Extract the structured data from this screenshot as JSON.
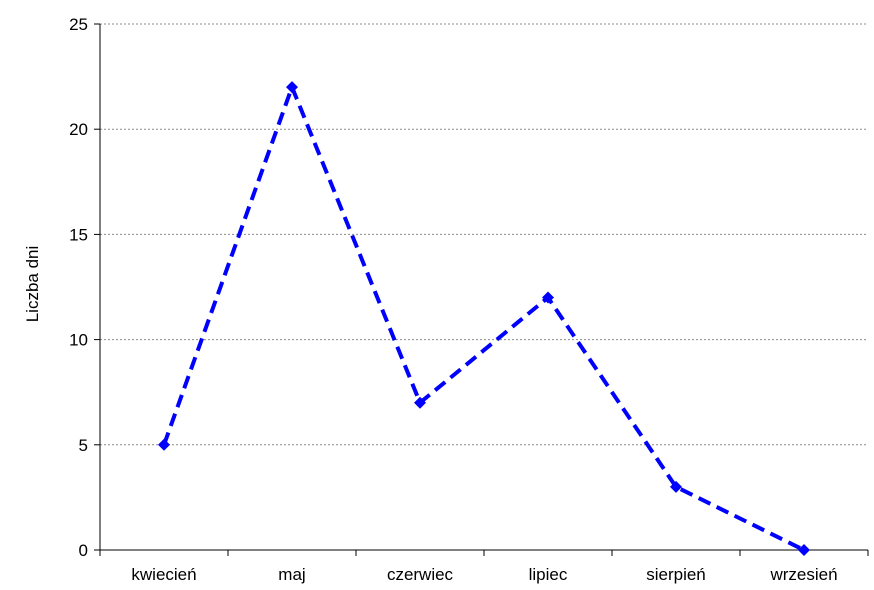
{
  "chart_data": {
    "type": "line",
    "categories": [
      "kwiecień",
      "maj",
      "czerwiec",
      "lipiec",
      "sierpień",
      "wrzesień"
    ],
    "series": [
      {
        "values": [
          5,
          22,
          7,
          12,
          3,
          0
        ],
        "color": "#0000ff",
        "line_style": "dashed",
        "marker": "diamond"
      }
    ],
    "ylabel": "Liczba dni",
    "ylim": [
      0,
      25
    ],
    "yticks": [
      0,
      5,
      10,
      15,
      20,
      25
    ],
    "grid": "horizontal dotted",
    "legend": "none"
  }
}
